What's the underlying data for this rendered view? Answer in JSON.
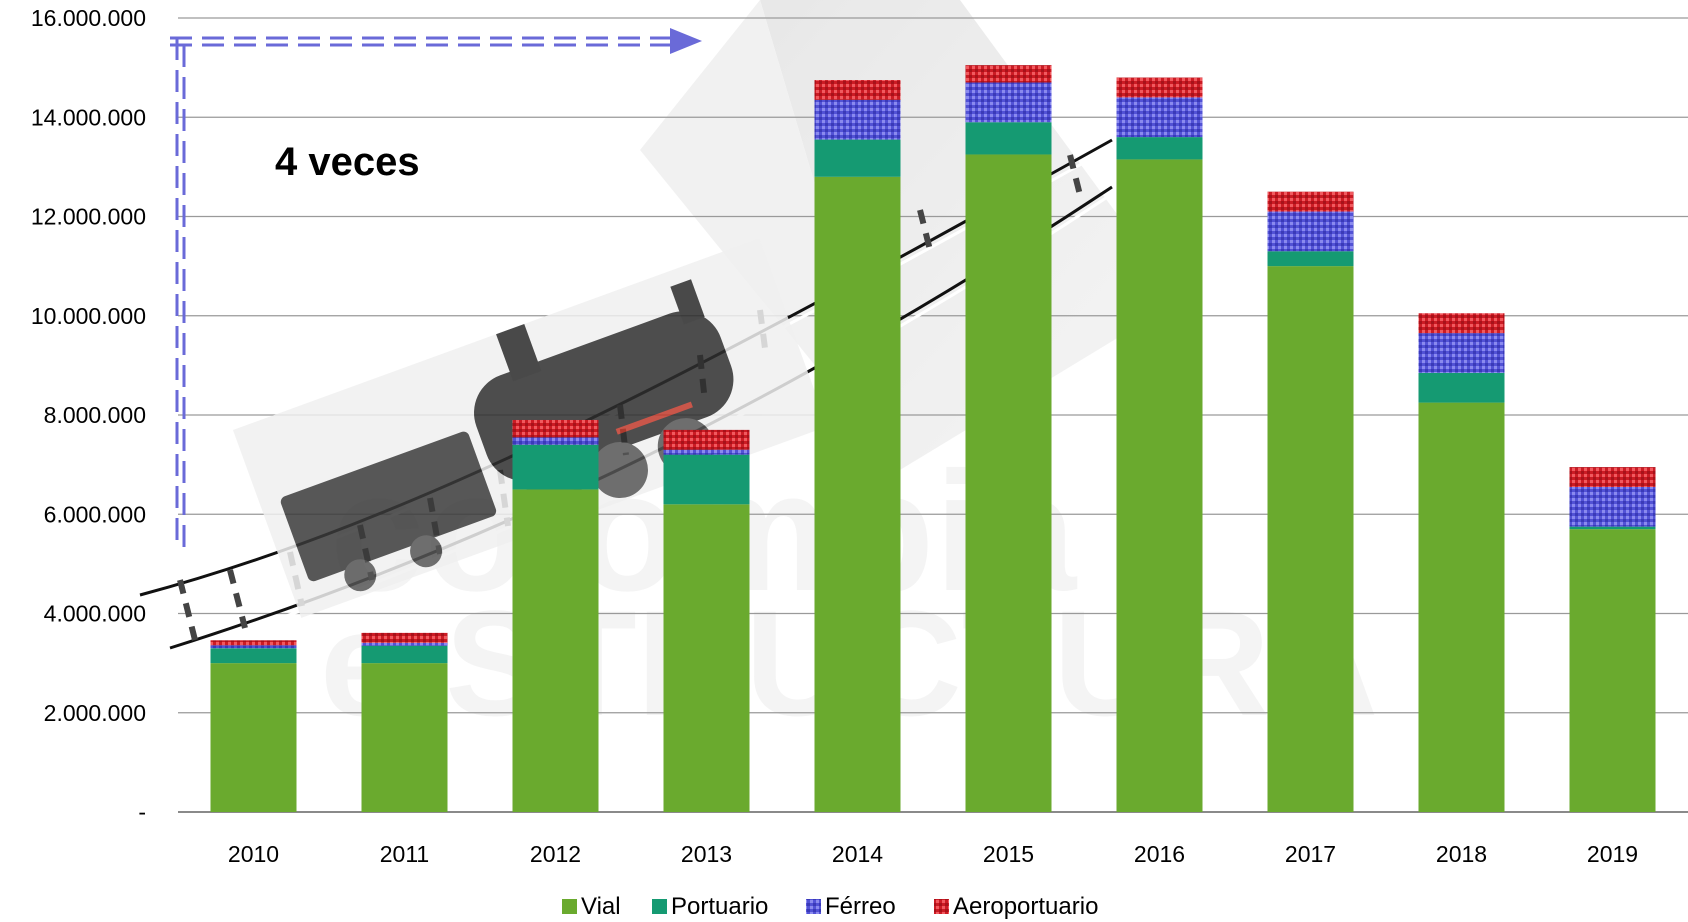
{
  "chart_data": {
    "type": "bar",
    "stacked": true,
    "categories": [
      "2010",
      "2011",
      "2012",
      "2013",
      "2014",
      "2015",
      "2016",
      "2017",
      "2018",
      "2019"
    ],
    "series": [
      {
        "name": "Vial",
        "color": "#6aaa2e",
        "values": [
          3000000,
          3000000,
          6500000,
          6200000,
          12800000,
          13250000,
          13150000,
          11000000,
          8250000,
          5700000
        ]
      },
      {
        "name": "Portuario",
        "color": "#159a72",
        "values": [
          300000,
          350000,
          900000,
          1000000,
          750000,
          650000,
          450000,
          300000,
          600000,
          50000
        ]
      },
      {
        "name": "Férreo",
        "color": "#4a4ad0",
        "values": [
          60000,
          60000,
          150000,
          100000,
          800000,
          800000,
          800000,
          800000,
          800000,
          800000
        ]
      },
      {
        "name": "Aeroportuario",
        "color": "#d8202a",
        "values": [
          100000,
          200000,
          350000,
          400000,
          400000,
          350000,
          400000,
          400000,
          400000,
          400000
        ]
      }
    ],
    "ylim": [
      0,
      16000000
    ],
    "y_ticks": [
      "-",
      "2.000.000",
      "4.000.000",
      "6.000.000",
      "8.000.000",
      "10.000.000",
      "12.000.000",
      "14.000.000",
      "16.000.000"
    ],
    "grid": true,
    "legend": "bottom",
    "annotation": "4 veces"
  }
}
